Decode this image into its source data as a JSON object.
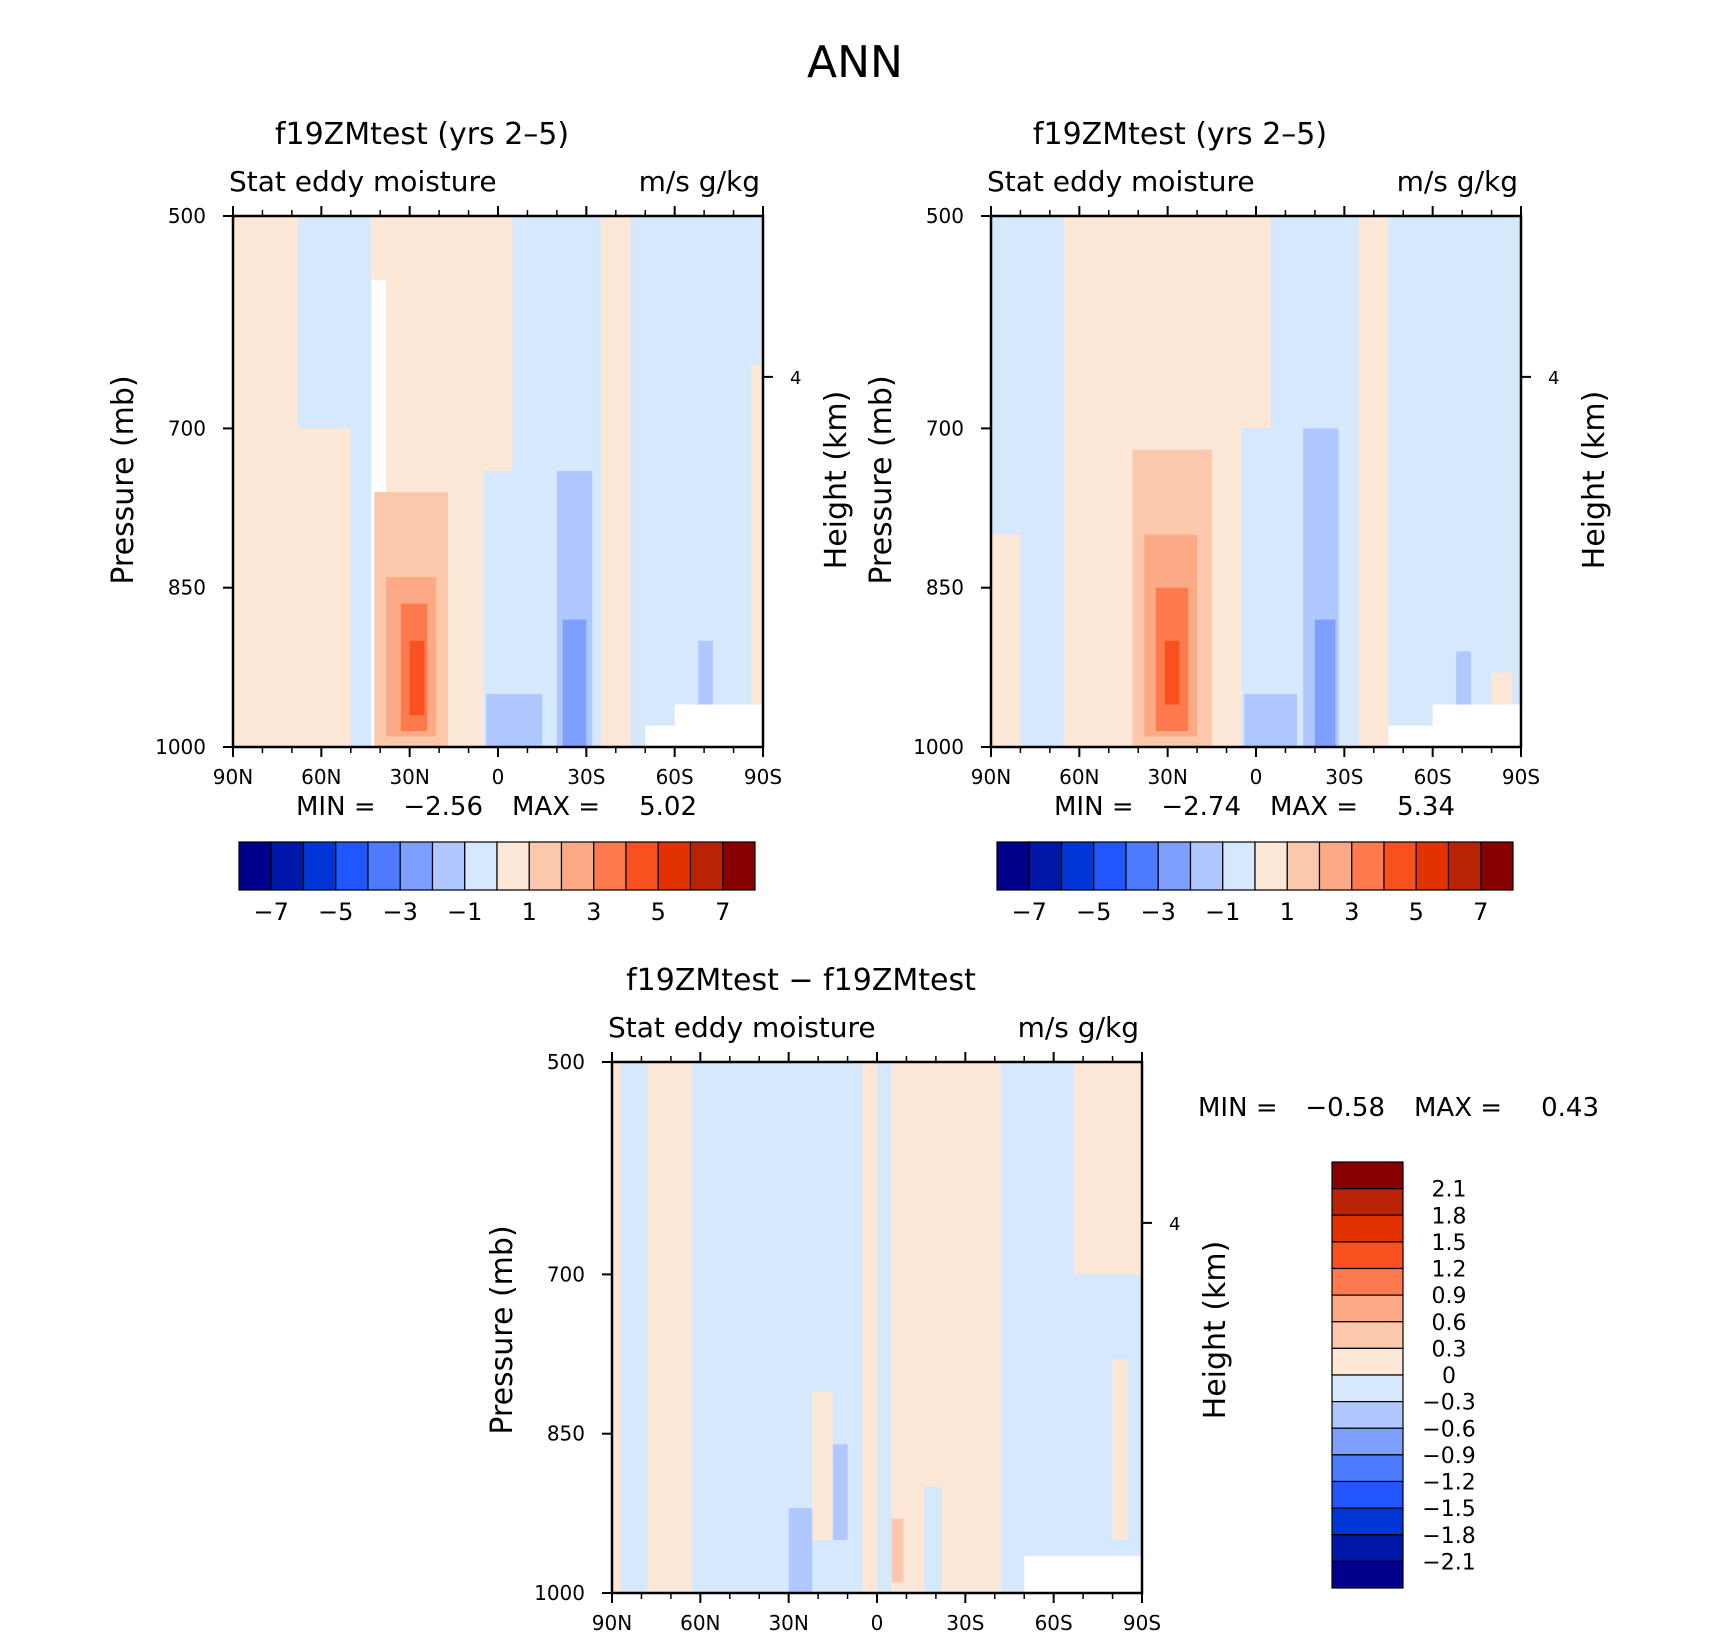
{
  "figure": {
    "title": "ANN"
  },
  "colors": {
    "contour12": [
      "#00008b",
      "#0018a8",
      "#0036d6",
      "#1f56ff",
      "#4d7bff",
      "#7f9fff",
      "#b0c8ff",
      "#d6e8fb",
      "#fde7d7",
      "#fcc8ab",
      "#fcaa86",
      "#fc7a4e",
      "#f9501f",
      "#e23202",
      "#b82205",
      "#870000"
    ]
  },
  "chart_data": [
    {
      "type": "heatmap",
      "title": "f19ZMtest (yrs 2–5)",
      "subtitle_left": "Stat eddy moisture",
      "subtitle_right": "m/s g/kg",
      "ylabel": "Pressure (mb)",
      "ylabel_right": "Height (km)",
      "x_ticks": [
        "90N",
        "60N",
        "30N",
        "0",
        "30S",
        "60S",
        "90S"
      ],
      "y_ticks": [
        500,
        700,
        850,
        1000
      ],
      "right_ticks": [
        "4"
      ],
      "ylim": [
        500,
        1000
      ],
      "min_label": "MIN =",
      "min_value": "−2.56",
      "max_label": "MAX =",
      "max_value": "5.02",
      "colorbar_labels": [
        "−7",
        "−5",
        "−3",
        "−1",
        "1",
        "3",
        "5",
        "7"
      ],
      "colorbar_levels": [
        -7,
        -6,
        -5,
        -4,
        -3,
        -2,
        -1,
        0,
        1,
        2,
        3,
        4,
        5,
        6,
        7
      ],
      "regions": [
        {
          "x": [
            -90,
            -68
          ],
          "p": [
            500,
            1000
          ],
          "bin": 8
        },
        {
          "x": [
            -68,
            -43
          ],
          "p": [
            500,
            1000
          ],
          "bin": 7
        },
        {
          "x": [
            -68,
            -50
          ],
          "p": [
            700,
            1000
          ],
          "bin": 8
        },
        {
          "x": [
            -43,
            -32
          ],
          "p": [
            500,
            560
          ],
          "bin": 8
        },
        {
          "x": [
            -38,
            -5
          ],
          "p": [
            500,
            1000
          ],
          "bin": 8
        },
        {
          "x": [
            -5,
            35
          ],
          "p": [
            500,
            1000
          ],
          "bin": 7
        },
        {
          "x": [
            -5,
            5
          ],
          "p": [
            500,
            740
          ],
          "bin": 8
        },
        {
          "x": [
            35,
            45
          ],
          "p": [
            500,
            1000
          ],
          "bin": 8
        },
        {
          "x": [
            45,
            90
          ],
          "p": [
            500,
            1000
          ],
          "bin": 7
        },
        {
          "x": [
            86,
            90
          ],
          "p": [
            640,
            1000
          ],
          "bin": 8
        },
        {
          "x": [
            75,
            86
          ],
          "p": [
            960,
            1000
          ],
          "bin": 8
        },
        {
          "x": [
            20,
            32
          ],
          "p": [
            740,
            1000
          ],
          "bin": 6
        },
        {
          "x": [
            22,
            30
          ],
          "p": [
            880,
            1000
          ],
          "bin": 5
        },
        {
          "x": [
            -4,
            15
          ],
          "p": [
            950,
            1000
          ],
          "bin": 6
        },
        {
          "x": [
            68,
            73
          ],
          "p": [
            900,
            985
          ],
          "bin": 6
        },
        {
          "x": [
            60,
            90
          ],
          "p": [
            960,
            1000
          ],
          "bin": "blank"
        },
        {
          "x": [
            50,
            60
          ],
          "p": [
            980,
            1000
          ],
          "bin": "blank"
        },
        {
          "x": [
            -42,
            -17
          ],
          "p": [
            760,
            1000
          ],
          "bin": 9
        },
        {
          "x": [
            -38,
            -21
          ],
          "p": [
            840,
            990
          ],
          "bin": 10
        },
        {
          "x": [
            -33,
            -24
          ],
          "p": [
            865,
            985
          ],
          "bin": 11
        },
        {
          "x": [
            -30,
            -25
          ],
          "p": [
            900,
            970
          ],
          "bin": 12
        }
      ]
    },
    {
      "type": "heatmap",
      "title": "f19ZMtest (yrs 2–5)",
      "subtitle_left": "Stat eddy moisture",
      "subtitle_right": "m/s g/kg",
      "ylabel": "Pressure (mb)",
      "ylabel_right": "Height (km)",
      "x_ticks": [
        "90N",
        "60N",
        "30N",
        "0",
        "30S",
        "60S",
        "90S"
      ],
      "y_ticks": [
        500,
        700,
        850,
        1000
      ],
      "right_ticks": [
        "4"
      ],
      "ylim": [
        500,
        1000
      ],
      "min_label": "MIN =",
      "min_value": "−2.74",
      "max_label": "MAX =",
      "max_value": "5.34",
      "colorbar_labels": [
        "−7",
        "−5",
        "−3",
        "−1",
        "1",
        "3",
        "5",
        "7"
      ],
      "colorbar_levels": [
        -7,
        -6,
        -5,
        -4,
        -3,
        -2,
        -1,
        0,
        1,
        2,
        3,
        4,
        5,
        6,
        7
      ],
      "regions": [
        {
          "x": [
            -90,
            -65
          ],
          "p": [
            500,
            1000
          ],
          "bin": 7
        },
        {
          "x": [
            -90,
            -80
          ],
          "p": [
            800,
            1000
          ],
          "bin": 8
        },
        {
          "x": [
            -65,
            -5
          ],
          "p": [
            500,
            1000
          ],
          "bin": 8
        },
        {
          "x": [
            -5,
            35
          ],
          "p": [
            500,
            1000
          ],
          "bin": 7
        },
        {
          "x": [
            -5,
            5
          ],
          "p": [
            500,
            700
          ],
          "bin": 8
        },
        {
          "x": [
            35,
            45
          ],
          "p": [
            500,
            1000
          ],
          "bin": 8
        },
        {
          "x": [
            45,
            90
          ],
          "p": [
            500,
            1000
          ],
          "bin": 7
        },
        {
          "x": [
            80,
            87
          ],
          "p": [
            930,
            1000
          ],
          "bin": 8
        },
        {
          "x": [
            16,
            28
          ],
          "p": [
            700,
            1000
          ],
          "bin": 6
        },
        {
          "x": [
            20,
            27
          ],
          "p": [
            880,
            1000
          ],
          "bin": 5
        },
        {
          "x": [
            -4,
            14
          ],
          "p": [
            950,
            1000
          ],
          "bin": 6
        },
        {
          "x": [
            68,
            73
          ],
          "p": [
            910,
            985
          ],
          "bin": 6
        },
        {
          "x": [
            60,
            90
          ],
          "p": [
            960,
            1000
          ],
          "bin": "blank"
        },
        {
          "x": [
            45,
            60
          ],
          "p": [
            980,
            1000
          ],
          "bin": "blank"
        },
        {
          "x": [
            -42,
            -15
          ],
          "p": [
            720,
            1000
          ],
          "bin": 9
        },
        {
          "x": [
            -38,
            -20
          ],
          "p": [
            800,
            990
          ],
          "bin": 10
        },
        {
          "x": [
            -34,
            -23
          ],
          "p": [
            850,
            985
          ],
          "bin": 11
        },
        {
          "x": [
            -31,
            -26
          ],
          "p": [
            900,
            960
          ],
          "bin": 12
        }
      ]
    },
    {
      "type": "heatmap",
      "title": "f19ZMtest − f19ZMtest",
      "subtitle_left": "Stat eddy moisture",
      "subtitle_right": "m/s g/kg",
      "ylabel": "Pressure (mb)",
      "ylabel_right": "Height (km)",
      "x_ticks": [
        "90N",
        "60N",
        "30N",
        "0",
        "30S",
        "60S",
        "90S"
      ],
      "y_ticks": [
        500,
        700,
        850,
        1000
      ],
      "right_ticks": [
        "4"
      ],
      "ylim": [
        500,
        1000
      ],
      "min_label": "MIN =",
      "min_value": "−0.58",
      "max_label": "MAX =",
      "max_value": "0.43",
      "colorbar_labels": [
        "2.1",
        "1.8",
        "1.5",
        "1.2",
        "0.9",
        "0.6",
        "0.3",
        "0",
        "−0.3",
        "−0.6",
        "−0.9",
        "−1.2",
        "−1.5",
        "−1.8",
        "−2.1"
      ],
      "colorbar_levels": [
        2.1,
        1.8,
        1.5,
        1.2,
        0.9,
        0.6,
        0.3,
        0,
        -0.3,
        -0.6,
        -0.9,
        -1.2,
        -1.5,
        -1.8,
        -2.1
      ],
      "regions": [
        {
          "x": [
            -90,
            -63
          ],
          "p": [
            500,
            1000
          ],
          "bin": 8
        },
        {
          "x": [
            -87,
            -78
          ],
          "p": [
            500,
            1000
          ],
          "bin": 7
        },
        {
          "x": [
            -63,
            -5
          ],
          "p": [
            500,
            1000
          ],
          "bin": 7
        },
        {
          "x": [
            -22,
            -15
          ],
          "p": [
            810,
            950
          ],
          "bin": 8
        },
        {
          "x": [
            -5,
            10
          ],
          "p": [
            500,
            1000
          ],
          "bin": 8
        },
        {
          "x": [
            0,
            5
          ],
          "p": [
            500,
            1000
          ],
          "bin": 7
        },
        {
          "x": [
            10,
            42
          ],
          "p": [
            500,
            1000
          ],
          "bin": 8
        },
        {
          "x": [
            16,
            22
          ],
          "p": [
            900,
            1000
          ],
          "bin": 7
        },
        {
          "x": [
            42,
            90
          ],
          "p": [
            500,
            1000
          ],
          "bin": 7
        },
        {
          "x": [
            67,
            90
          ],
          "p": [
            500,
            700
          ],
          "bin": 8
        },
        {
          "x": [
            80,
            85
          ],
          "p": [
            780,
            950
          ],
          "bin": 8
        },
        {
          "x": [
            -30,
            -22
          ],
          "p": [
            920,
            1000
          ],
          "bin": 6
        },
        {
          "x": [
            -15,
            -10
          ],
          "p": [
            860,
            950
          ],
          "bin": 6
        },
        {
          "x": [
            5,
            9
          ],
          "p": [
            930,
            990
          ],
          "bin": 9
        },
        {
          "x": [
            50,
            90
          ],
          "p": [
            965,
            1000
          ],
          "bin": "blank"
        }
      ]
    }
  ]
}
